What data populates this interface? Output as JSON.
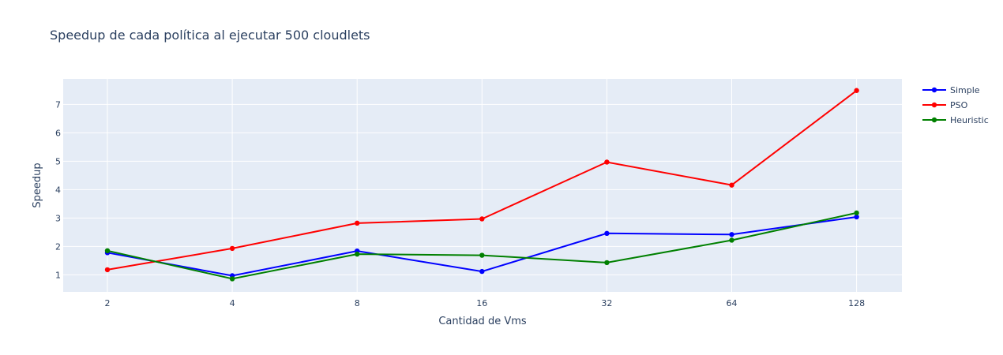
{
  "chart_data": {
    "type": "line",
    "title": "Speedup de cada política al ejecutar 500 cloudlets",
    "xlabel": "Cantidad de Vms",
    "ylabel": "Speedup",
    "categories": [
      "2",
      "4",
      "8",
      "16",
      "32",
      "64",
      "128"
    ],
    "yticks": [
      1,
      2,
      3,
      4,
      5,
      6,
      7
    ],
    "ylim": [
      0.4,
      7.9
    ],
    "grid": true,
    "legend_position": "top-right",
    "plot_background": "#e5ecf6",
    "series": [
      {
        "name": "Simple",
        "color": "#0000ff",
        "values": [
          1.78,
          0.97,
          1.84,
          1.12,
          2.46,
          2.42,
          3.04
        ]
      },
      {
        "name": "PSO",
        "color": "#ff0000",
        "values": [
          1.18,
          1.93,
          2.82,
          2.97,
          4.97,
          4.16,
          7.49
        ]
      },
      {
        "name": "Heuristic",
        "color": "#008000",
        "values": [
          1.85,
          0.86,
          1.73,
          1.69,
          1.43,
          2.22,
          3.18
        ]
      }
    ]
  }
}
